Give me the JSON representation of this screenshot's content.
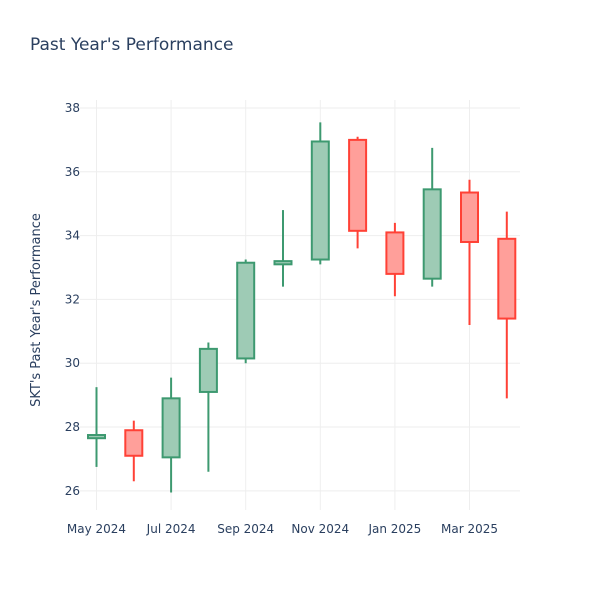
{
  "chart_data": {
    "type": "candlestick",
    "title": "Past Year's Performance",
    "ylabel": "SKT's Past Year's Performance",
    "xlabel": "",
    "ylim": [
      25.4,
      38.25
    ],
    "yticks": [
      26,
      28,
      30,
      32,
      34,
      36,
      38
    ],
    "xtick_labels": [
      "May 2024",
      "Jul 2024",
      "Sep 2024",
      "Nov 2024",
      "Jan 2025",
      "Mar 2025"
    ],
    "grid": true,
    "legend": "none",
    "colors": {
      "increasing_line": "#3d9970",
      "increasing_fill": "#9ecbb5",
      "decreasing_line": "#ff4136",
      "decreasing_fill": "#ff9f9a",
      "text": "#2a3f5f",
      "grid": "#eeeeee"
    },
    "candles": [
      {
        "x": "2024-05",
        "open": 27.65,
        "high": 29.25,
        "low": 26.75,
        "close": 27.75
      },
      {
        "x": "2024-06",
        "open": 27.9,
        "high": 28.2,
        "low": 26.3,
        "close": 27.1
      },
      {
        "x": "2024-07",
        "open": 27.05,
        "high": 29.55,
        "low": 25.95,
        "close": 28.9
      },
      {
        "x": "2024-08",
        "open": 29.1,
        "high": 30.65,
        "low": 26.6,
        "close": 30.45
      },
      {
        "x": "2024-09",
        "open": 30.15,
        "high": 33.25,
        "low": 30.0,
        "close": 33.15
      },
      {
        "x": "2024-10",
        "open": 33.1,
        "high": 34.8,
        "low": 32.4,
        "close": 33.2
      },
      {
        "x": "2024-11",
        "open": 33.25,
        "high": 37.55,
        "low": 33.1,
        "close": 36.95
      },
      {
        "x": "2024-12",
        "open": 37.0,
        "high": 37.1,
        "low": 33.6,
        "close": 34.15
      },
      {
        "x": "2025-01",
        "open": 34.1,
        "high": 34.4,
        "low": 32.1,
        "close": 32.8
      },
      {
        "x": "2025-02",
        "open": 32.65,
        "high": 36.75,
        "low": 32.4,
        "close": 35.45
      },
      {
        "x": "2025-03",
        "open": 35.35,
        "high": 35.75,
        "low": 31.2,
        "close": 33.8
      },
      {
        "x": "2025-04",
        "open": 33.9,
        "high": 34.75,
        "low": 28.9,
        "close": 31.4
      }
    ]
  }
}
